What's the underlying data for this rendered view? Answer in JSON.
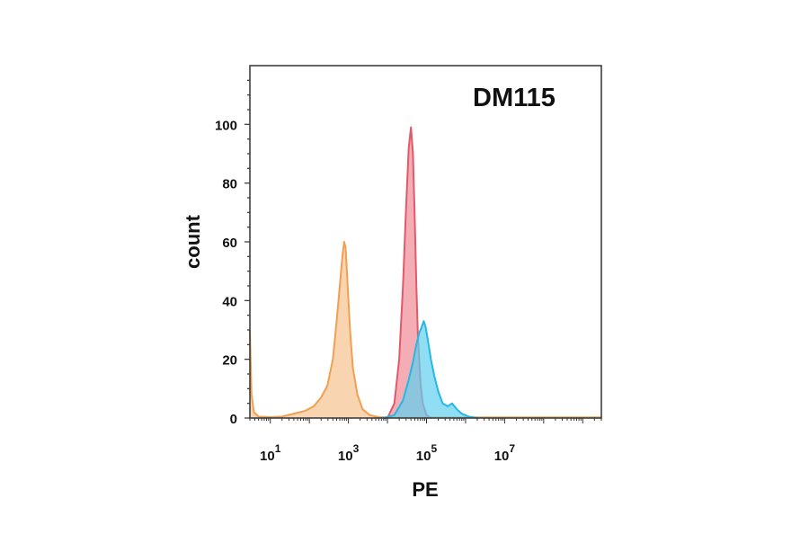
{
  "chart_data": {
    "type": "area",
    "title": "DM115",
    "xlabel": "PE",
    "ylabel": "count",
    "x_scale": "log",
    "xlim": [
      3,
      3000000000
    ],
    "ylim": [
      0,
      120
    ],
    "grid": false,
    "legend": "none",
    "x_ticks": [
      {
        "value": 10,
        "base": "10",
        "exp": "1"
      },
      {
        "value": 1000,
        "base": "10",
        "exp": "3"
      },
      {
        "value": 100000,
        "base": "10",
        "exp": "5"
      },
      {
        "value": 10000000,
        "base": "10",
        "exp": "7"
      }
    ],
    "y_ticks": [
      {
        "value": 0,
        "label": "0"
      },
      {
        "value": 20,
        "label": "20"
      },
      {
        "value": 40,
        "label": "40"
      },
      {
        "value": 60,
        "label": "60"
      },
      {
        "value": 80,
        "label": "80"
      },
      {
        "value": 100,
        "label": "100"
      }
    ],
    "series": [
      {
        "color": "#f0a050",
        "fill": "#f6c28e",
        "x": [
          3,
          3.3,
          3.8,
          5,
          10,
          20,
          40,
          80,
          130,
          200,
          290,
          400,
          500,
          600,
          700,
          780,
          850,
          950,
          1100,
          1300,
          1700,
          2300,
          3500,
          6000,
          12000,
          40000,
          200000,
          1000000,
          10000000,
          1000000000,
          3000000000
        ],
        "y": [
          30,
          8,
          2,
          0.5,
          0.3,
          0.5,
          1.5,
          2.5,
          4,
          7,
          11,
          20,
          33,
          45,
          55,
          60,
          58,
          46,
          30,
          17,
          8,
          3,
          1,
          0.3,
          0.2,
          0.2,
          0.2,
          0.2,
          0.2,
          0.2,
          0.2
        ]
      },
      {
        "color": "#e25a6a",
        "fill": "#f08a95",
        "x": [
          10000,
          15000,
          20000,
          25000,
          30000,
          35000,
          40000,
          45000,
          50000,
          55000,
          60000,
          70000,
          80000,
          100000,
          130000
        ],
        "y": [
          0,
          5,
          20,
          45,
          72,
          92,
          99,
          90,
          68,
          45,
          28,
          12,
          5,
          1,
          0
        ]
      },
      {
        "color": "#25b8e3",
        "fill": "#5fd0f0",
        "x": [
          8000,
          15000,
          25000,
          35000,
          45000,
          55000,
          65000,
          75000,
          85000,
          95000,
          110000,
          130000,
          160000,
          200000,
          260000,
          350000,
          450000,
          600000,
          800000,
          1200000,
          2000000
        ],
        "y": [
          0,
          1,
          6,
          13,
          19,
          25,
          29,
          31,
          33,
          31,
          26,
          20,
          14,
          9,
          5,
          4,
          5,
          3,
          1.5,
          0.5,
          0
        ]
      }
    ]
  }
}
